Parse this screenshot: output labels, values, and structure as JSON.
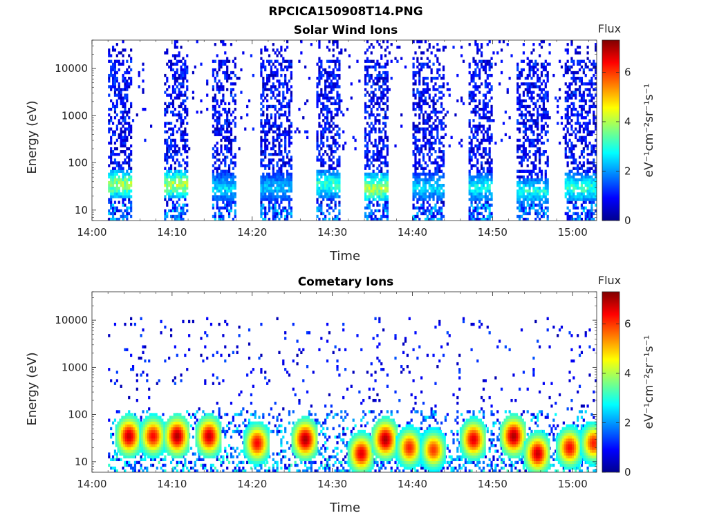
{
  "figure": {
    "filename": "RPCICA150908T14.PNG"
  },
  "chart_data": [
    {
      "type": "heatmap",
      "title": "Solar Wind Ions",
      "xlabel": "Time",
      "ylabel": "Energy (eV)",
      "xtick_labels": [
        "14:00",
        "14:10",
        "14:20",
        "14:30",
        "14:40",
        "14:50",
        "15:00"
      ],
      "xlim": [
        "14:00",
        "15:03"
      ],
      "ytick_labels": [
        "10",
        "100",
        "1000",
        "10000"
      ],
      "yscale": "log",
      "ylim": [
        6,
        40000
      ],
      "colorbar": {
        "title": "Flux",
        "label": "eV⁻¹cm⁻²sr⁻¹s⁻¹",
        "tick_labels": [
          "0",
          "2",
          "4",
          "6"
        ],
        "range": [
          0,
          7.3
        ],
        "colormap": "jet"
      },
      "bursts": [
        {
          "start": "14:02",
          "end": "14:05",
          "peak_energy_ev": 35,
          "peak_flux": 4.6
        },
        {
          "start": "14:09",
          "end": "14:12",
          "peak_energy_ev": 35,
          "peak_flux": 4.8
        },
        {
          "start": "14:15",
          "end": "14:18",
          "peak_energy_ev": 30,
          "peak_flux": 3.0
        },
        {
          "start": "14:21",
          "end": "14:25",
          "peak_energy_ev": 30,
          "peak_flux": 2.8
        },
        {
          "start": "14:28",
          "end": "14:31",
          "peak_energy_ev": 35,
          "peak_flux": 3.8
        },
        {
          "start": "14:34",
          "end": "14:37",
          "peak_energy_ev": 30,
          "peak_flux": 4.8
        },
        {
          "start": "14:40",
          "end": "14:44",
          "peak_energy_ev": 30,
          "peak_flux": 3.0
        },
        {
          "start": "14:47",
          "end": "14:50",
          "peak_energy_ev": 30,
          "peak_flux": 3.4
        },
        {
          "start": "14:53",
          "end": "14:57",
          "peak_energy_ev": 25,
          "peak_flux": 3.4
        },
        {
          "start": "14:59",
          "end": "15:03",
          "peak_energy_ev": 30,
          "peak_flux": 3.8
        }
      ]
    },
    {
      "type": "heatmap",
      "title": "Cometary Ions",
      "xlabel": "Time",
      "ylabel": "Energy (eV)",
      "xtick_labels": [
        "14:00",
        "14:10",
        "14:20",
        "14:30",
        "14:40",
        "14:50",
        "15:00"
      ],
      "xlim": [
        "14:00",
        "15:03"
      ],
      "ytick_labels": [
        "10",
        "100",
        "1000",
        "10000"
      ],
      "yscale": "log",
      "ylim": [
        6,
        40000
      ],
      "colorbar": {
        "title": "Flux",
        "label": "eV⁻¹cm⁻²sr⁻¹s⁻¹",
        "tick_labels": [
          "0",
          "2",
          "4",
          "6"
        ],
        "range": [
          0,
          7.3
        ],
        "colormap": "jet"
      },
      "bursts": [
        {
          "time": "14:04",
          "peak_energy_ev": 35,
          "peak_flux": 6.8
        },
        {
          "time": "14:07",
          "peak_energy_ev": 35,
          "peak_flux": 6.4
        },
        {
          "time": "14:10",
          "peak_energy_ev": 35,
          "peak_flux": 7.0
        },
        {
          "time": "14:14",
          "peak_energy_ev": 35,
          "peak_flux": 6.8
        },
        {
          "time": "14:20",
          "peak_energy_ev": 25,
          "peak_flux": 6.4
        },
        {
          "time": "14:26",
          "peak_energy_ev": 30,
          "peak_flux": 7.0
        },
        {
          "time": "14:33",
          "peak_energy_ev": 15,
          "peak_flux": 6.6
        },
        {
          "time": "14:36",
          "peak_energy_ev": 30,
          "peak_flux": 7.0
        },
        {
          "time": "14:39",
          "peak_energy_ev": 20,
          "peak_flux": 6.2
        },
        {
          "time": "14:42",
          "peak_energy_ev": 18,
          "peak_flux": 6.0
        },
        {
          "time": "14:47",
          "peak_energy_ev": 30,
          "peak_flux": 6.6
        },
        {
          "time": "14:52",
          "peak_energy_ev": 35,
          "peak_flux": 7.0
        },
        {
          "time": "14:55",
          "peak_energy_ev": 15,
          "peak_flux": 6.8
        },
        {
          "time": "14:59",
          "peak_energy_ev": 20,
          "peak_flux": 6.4
        },
        {
          "time": "15:02",
          "peak_energy_ev": 25,
          "peak_flux": 6.2
        }
      ]
    }
  ]
}
